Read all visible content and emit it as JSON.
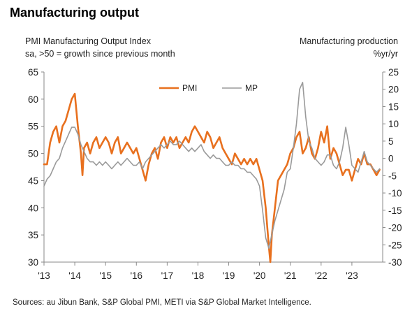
{
  "title": "Manufacturing output",
  "left_header": {
    "line1": "PMI Manufacturing Output Index",
    "line2": "sa, >50 = growth since previous month"
  },
  "right_header": {
    "line1": "Manufacturing production",
    "line2": "%yr/yr"
  },
  "source": "Sources: au Jibun Bank, S&P Global PMI, METI via S&P Global Market Intelligence.",
  "colors": {
    "pmi": "#E8701E",
    "mp": "#9A9A9A",
    "axis": "#888888"
  },
  "chart_data": {
    "type": "line",
    "x_ticks": [
      "'13",
      "'14",
      "'15",
      "'16",
      "'17",
      "'18",
      "'19",
      "'20",
      "'21",
      "'22",
      "'23"
    ],
    "x_range": [
      2013.0,
      2024.0
    ],
    "y_left": {
      "range": [
        30,
        65
      ],
      "ticks": [
        "30",
        "35",
        "40",
        "45",
        "50",
        "55",
        "60",
        "65"
      ]
    },
    "y_right": {
      "range": [
        -30,
        25
      ],
      "ticks": [
        "-30",
        "-25",
        "-20",
        "-15",
        "-10",
        "-5",
        "0",
        "5",
        "10",
        "15",
        "20",
        "25"
      ]
    },
    "legend_position": "top-center",
    "series": [
      {
        "name": "PMI",
        "axis": "left",
        "color_key": "pmi",
        "x": [
          2013.0,
          2013.1,
          2013.2,
          2013.3,
          2013.4,
          2013.5,
          2013.6,
          2013.7,
          2013.8,
          2013.9,
          2014.0,
          2014.05,
          2014.1,
          2014.2,
          2014.25,
          2014.3,
          2014.4,
          2014.5,
          2014.6,
          2014.7,
          2014.8,
          2014.9,
          2015.0,
          2015.1,
          2015.2,
          2015.3,
          2015.4,
          2015.5,
          2015.6,
          2015.7,
          2015.8,
          2015.9,
          2016.0,
          2016.1,
          2016.2,
          2016.3,
          2016.4,
          2016.5,
          2016.6,
          2016.7,
          2016.8,
          2016.9,
          2017.0,
          2017.1,
          2017.2,
          2017.3,
          2017.4,
          2017.5,
          2017.6,
          2017.7,
          2017.8,
          2017.9,
          2018.0,
          2018.1,
          2018.2,
          2018.3,
          2018.4,
          2018.5,
          2018.6,
          2018.7,
          2018.8,
          2018.9,
          2019.0,
          2019.1,
          2019.2,
          2019.3,
          2019.4,
          2019.5,
          2019.6,
          2019.7,
          2019.8,
          2019.9,
          2020.0,
          2020.1,
          2020.2,
          2020.3,
          2020.35,
          2020.4,
          2020.5,
          2020.6,
          2020.7,
          2020.8,
          2020.9,
          2021.0,
          2021.1,
          2021.2,
          2021.3,
          2021.4,
          2021.5,
          2021.6,
          2021.7,
          2021.8,
          2021.9,
          2022.0,
          2022.1,
          2022.2,
          2022.3,
          2022.4,
          2022.5,
          2022.6,
          2022.7,
          2022.8,
          2022.9,
          2023.0,
          2023.1,
          2023.2,
          2023.3,
          2023.4,
          2023.5,
          2023.6,
          2023.7,
          2023.8,
          2023.9
        ],
        "values": [
          48,
          48,
          52,
          54,
          55,
          52,
          55,
          56,
          58,
          60,
          61,
          58,
          55,
          50,
          46,
          51,
          52,
          50,
          52,
          53,
          51,
          52,
          53,
          52,
          50,
          52,
          53,
          50,
          51,
          52,
          51,
          50,
          51,
          49,
          47,
          45,
          48,
          50,
          51,
          49,
          52,
          53,
          51,
          53,
          52,
          53,
          51,
          52,
          53,
          52,
          54,
          55,
          54,
          53,
          52,
          54,
          53,
          51,
          52,
          53,
          51,
          50,
          49,
          48,
          50,
          49,
          48,
          49,
          48,
          49,
          48,
          49,
          47,
          45,
          40,
          33,
          30,
          35,
          40,
          45,
          46,
          47,
          48,
          50,
          51,
          53,
          54,
          50,
          51,
          53,
          50,
          49,
          51,
          54,
          52,
          55,
          49,
          51,
          50,
          48,
          46,
          47,
          47,
          45,
          47,
          49,
          48,
          50,
          48,
          48,
          47,
          46,
          47
        ]
      },
      {
        "name": "MP",
        "axis": "right",
        "color_key": "mp",
        "x": [
          2013.0,
          2013.1,
          2013.2,
          2013.3,
          2013.4,
          2013.5,
          2013.6,
          2013.7,
          2013.8,
          2013.9,
          2014.0,
          2014.1,
          2014.2,
          2014.3,
          2014.4,
          2014.5,
          2014.6,
          2014.7,
          2014.8,
          2014.9,
          2015.0,
          2015.1,
          2015.2,
          2015.3,
          2015.4,
          2015.5,
          2015.6,
          2015.7,
          2015.8,
          2015.9,
          2016.0,
          2016.1,
          2016.2,
          2016.3,
          2016.4,
          2016.5,
          2016.6,
          2016.7,
          2016.8,
          2016.9,
          2017.0,
          2017.1,
          2017.2,
          2017.3,
          2017.4,
          2017.5,
          2017.6,
          2017.7,
          2017.8,
          2017.9,
          2018.0,
          2018.1,
          2018.2,
          2018.3,
          2018.4,
          2018.5,
          2018.6,
          2018.7,
          2018.8,
          2018.9,
          2019.0,
          2019.1,
          2019.2,
          2019.3,
          2019.4,
          2019.5,
          2019.6,
          2019.7,
          2019.8,
          2019.9,
          2020.0,
          2020.1,
          2020.2,
          2020.3,
          2020.4,
          2020.5,
          2020.6,
          2020.7,
          2020.8,
          2020.9,
          2021.0,
          2021.1,
          2021.2,
          2021.3,
          2021.4,
          2021.5,
          2021.6,
          2021.7,
          2021.8,
          2021.9,
          2022.0,
          2022.1,
          2022.2,
          2022.3,
          2022.4,
          2022.5,
          2022.6,
          2022.7,
          2022.8,
          2022.9,
          2023.0,
          2023.1,
          2023.2,
          2023.3,
          2023.4,
          2023.5,
          2023.6,
          2023.7,
          2023.8,
          2023.9
        ],
        "values": [
          -8,
          -6,
          -5,
          -3,
          -1,
          0,
          3,
          5,
          7,
          9,
          9,
          7,
          4,
          2,
          0,
          -1,
          -1,
          -2,
          -1,
          -2,
          -1,
          -2,
          -3,
          -2,
          -1,
          -2,
          -1,
          0,
          -1,
          -2,
          -2,
          -1,
          -3,
          -1,
          0,
          1,
          2,
          3,
          4,
          3,
          4,
          5,
          4,
          4,
          5,
          4,
          3,
          2,
          3,
          2,
          3,
          4,
          2,
          1,
          0,
          1,
          0,
          0,
          -1,
          -2,
          -2,
          -1,
          -2,
          -2,
          -3,
          -3,
          -4,
          -4,
          -5,
          -6,
          -8,
          -15,
          -23,
          -26,
          -22,
          -18,
          -15,
          -12,
          -9,
          -4,
          -3,
          3,
          10,
          20,
          22,
          12,
          5,
          3,
          0,
          -1,
          -2,
          -1,
          1,
          1,
          -2,
          -3,
          -1,
          3,
          9,
          4,
          -2,
          -3,
          -4,
          -1,
          2,
          -1,
          -2,
          -3,
          -4,
          -3
        ]
      }
    ]
  }
}
